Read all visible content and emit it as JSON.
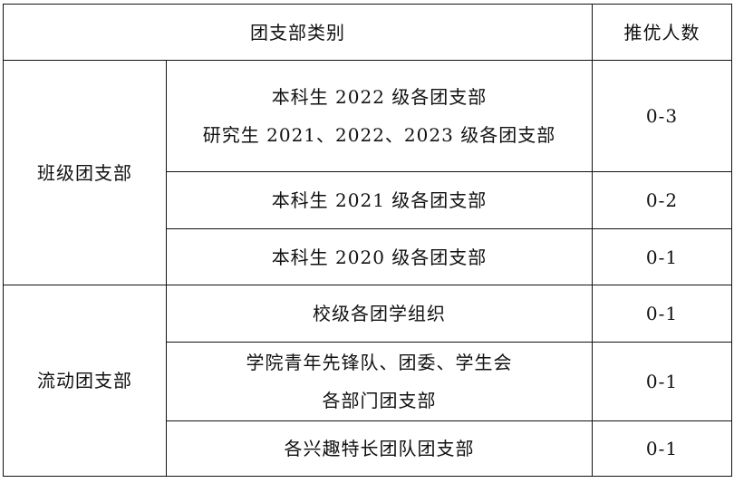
{
  "header": {
    "category": "团支部类别",
    "count": "推优人数"
  },
  "groups": [
    {
      "name": "班级团支部",
      "rows": [
        {
          "lines": [
            "本科生 2022 级各团支部",
            "研究生 2021、2022、2023 级各团支部"
          ],
          "count": "0-3"
        },
        {
          "lines": [
            "本科生 2021 级各团支部"
          ],
          "count": "0-2"
        },
        {
          "lines": [
            "本科生 2020 级各团支部"
          ],
          "count": "0-1"
        }
      ]
    },
    {
      "name": "流动团支部",
      "rows": [
        {
          "lines": [
            "校级各团学组织"
          ],
          "count": "0-1"
        },
        {
          "lines": [
            "学院青年先锋队、团委、学生会",
            "各部门团支部"
          ],
          "count": "0-1"
        },
        {
          "lines": [
            "各兴趣特长团队团支部"
          ],
          "count": "0-1"
        }
      ]
    }
  ]
}
